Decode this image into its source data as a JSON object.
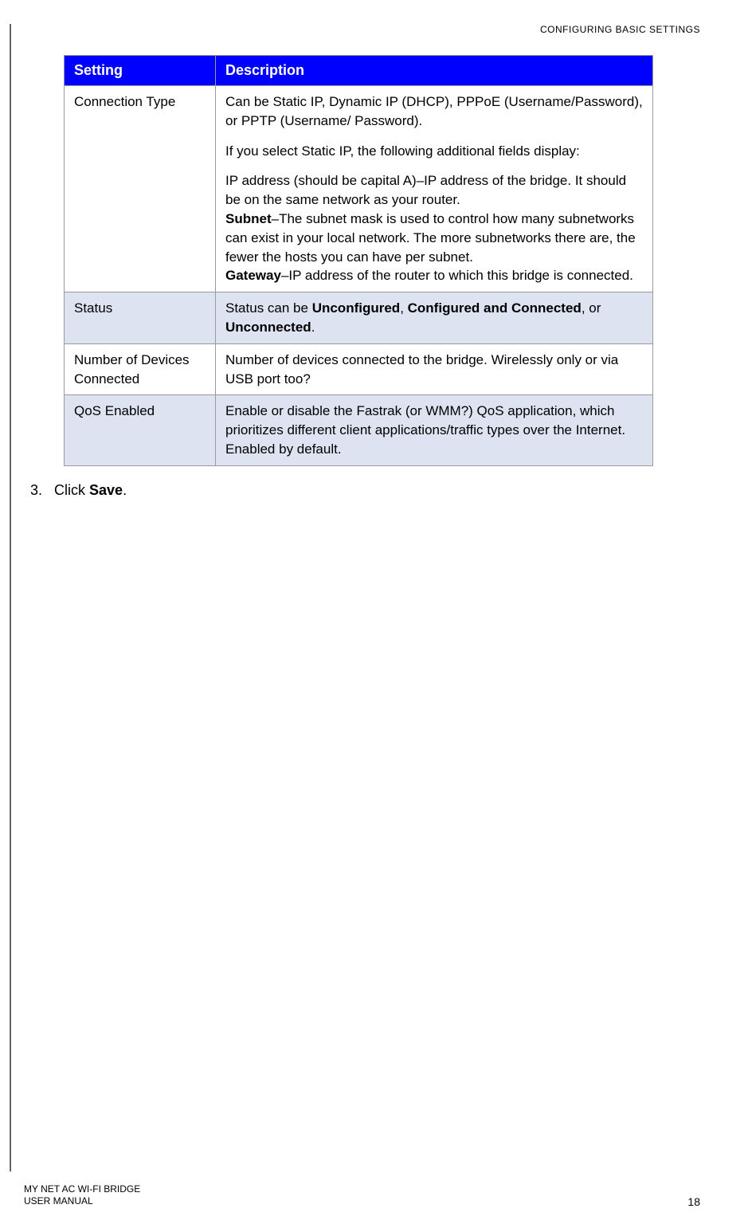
{
  "header": {
    "section_title": "CONFIGURING BASIC SETTINGS"
  },
  "table": {
    "columns": [
      "Setting",
      "Description"
    ],
    "header_bg": "#0000ff",
    "header_color": "#ffffff",
    "alt_row_bg": "#dde3f0",
    "border_color": "#999999",
    "col1_width": 190,
    "rows": [
      {
        "setting": "Connection Type",
        "alt": false,
        "desc_p1": "Can be Static IP, Dynamic IP (DHCP), PPPoE (Username/Password), or PPTP (Username/ Password).",
        "desc_p2": "If you select Static IP, the following additional fields display:",
        "desc_p3_pre": "IP address (should be capital A)–IP address of the bridge. It should be on the same network as your router.",
        "desc_subnet_label": "Subnet",
        "desc_subnet_text": "–The subnet mask is used to control how many subnetworks can exist in your local network. The more subnetworks there are, the fewer the hosts you can have per subnet.",
        "desc_gateway_label": "Gateway",
        "desc_gateway_text": "–IP address of the router to which this bridge is connected."
      },
      {
        "setting": "Status",
        "alt": true,
        "desc_pre": "Status can be ",
        "desc_b1": "Unconfigured",
        "desc_mid1": ", ",
        "desc_b2": "Configured and Connected",
        "desc_mid2": ", or ",
        "desc_b3": "Unconnected",
        "desc_post": "."
      },
      {
        "setting": "Number of Devices Connected",
        "alt": false,
        "desc": "Number of devices connected to the bridge. Wirelessly only or via USB port too?"
      },
      {
        "setting": "QoS Enabled",
        "alt": true,
        "desc": "Enable or disable the Fastrak (or WMM?) QoS application, which prioritizes different client applications/traffic types over the Internet. Enabled by default."
      }
    ]
  },
  "step": {
    "number": "3.",
    "text_pre": "Click ",
    "text_bold": "Save",
    "text_post": "."
  },
  "footer": {
    "product": "MY NET AC WI-FI BRIDGE",
    "manual": "USER MANUAL",
    "page_number": "18"
  }
}
